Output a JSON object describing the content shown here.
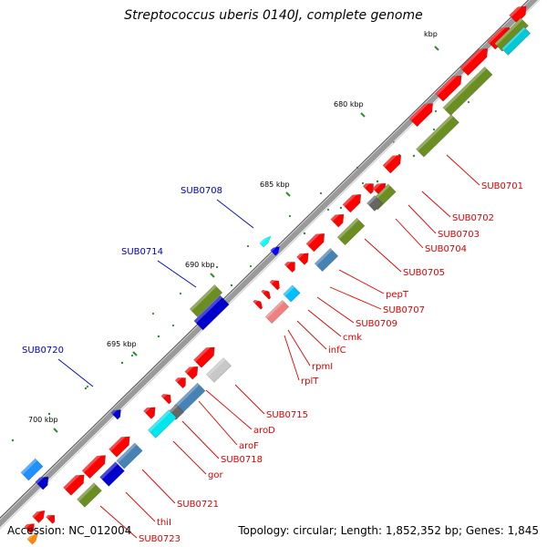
{
  "title": "Streptococcus uberis 0140J, complete genome",
  "accession": "Accession: NC_012004",
  "summary": "Topology: circular; Length: 1,852,352 bp; Genes: 1,845",
  "scale": {
    "partial_label": "kbp",
    "ticks": [
      "680 kbp",
      "685 kbp",
      "690 kbp",
      "695 kbp",
      "700 kbp"
    ]
  },
  "colors": {
    "forward_cds": "#ff0000",
    "reverse_cds": "#ff0000",
    "forward_gene": "#6b8e23",
    "reverse_gene": "#6b8e23",
    "label_red": "#dd0000",
    "label_blue": "#0000bb",
    "backbone": "#9a9a9a"
  },
  "gene_labels_inner": [
    "SUB0701",
    "SUB0702",
    "SUB0703",
    "SUB0704",
    "SUB0705",
    "pepT",
    "SUB0707",
    "SUB0709",
    "cmk",
    "infC",
    "rpmI",
    "rplT",
    "SUB0715",
    "aroD",
    "aroF",
    "SUB0718",
    "gor",
    "SUB0721",
    "thiI",
    "SUB0723"
  ],
  "gene_labels_outer": [
    "SUB0708",
    "SUB0714",
    "SUB0720"
  ]
}
